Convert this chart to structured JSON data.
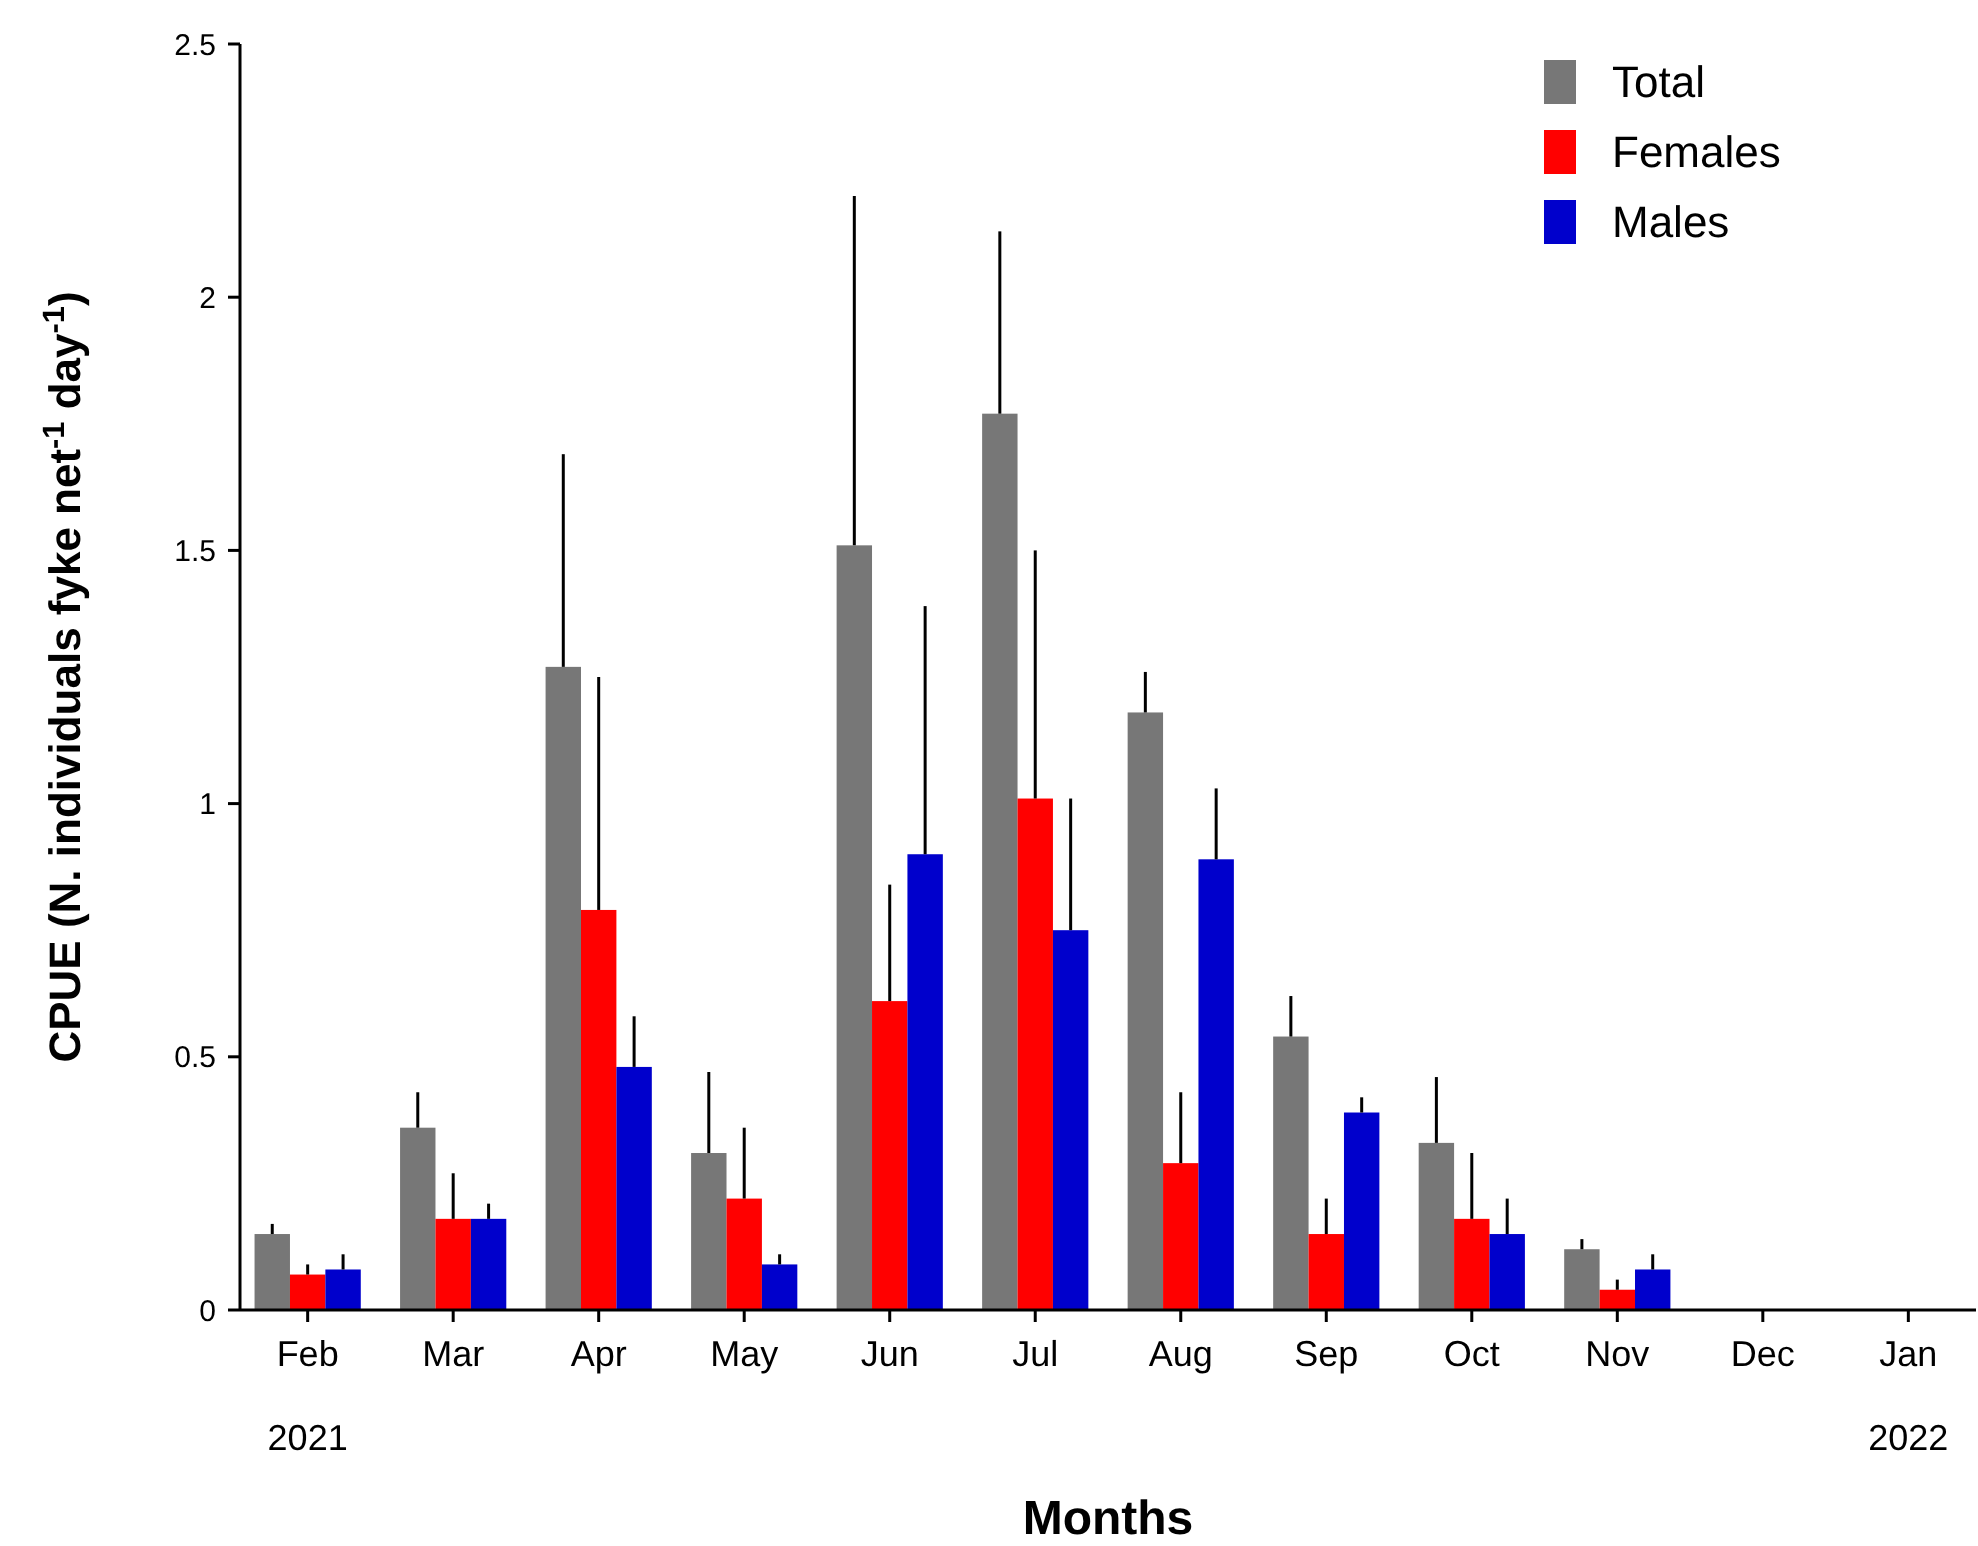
{
  "chart_data": {
    "type": "bar",
    "xlabel": "Months",
    "ylabel": "CPUE (N. individuals fyke net$^{-1}$ day$^{-1}$)",
    "categories": [
      "Feb",
      "Mar",
      "Apr",
      "May",
      "Jun",
      "Jul",
      "Aug",
      "Sep",
      "Oct",
      "Nov",
      "Dec",
      "Jan"
    ],
    "series": [
      {
        "name": "Total",
        "color": "#777777",
        "values": [
          0.15,
          0.36,
          1.27,
          0.31,
          1.51,
          1.77,
          1.18,
          0.54,
          0.33,
          0.12,
          null,
          null
        ],
        "errors": [
          [
            0.15,
            0.17
          ],
          [
            0.36,
            0.43
          ],
          [
            1.27,
            1.69
          ],
          [
            0.31,
            0.47
          ],
          [
            1.51,
            2.2
          ],
          [
            1.77,
            2.13
          ],
          [
            1.18,
            1.26
          ],
          [
            0.54,
            0.62
          ],
          [
            0.33,
            0.46
          ],
          [
            0.12,
            0.14
          ],
          null,
          null
        ]
      },
      {
        "name": "Females",
        "color": "#ff0000",
        "values": [
          0.07,
          0.18,
          0.79,
          0.22,
          0.61,
          1.01,
          0.29,
          0.15,
          0.18,
          0.04,
          null,
          null
        ],
        "errors": [
          [
            0.07,
            0.09
          ],
          [
            0.18,
            0.27
          ],
          [
            0.79,
            1.25
          ],
          [
            0.22,
            0.36
          ],
          [
            0.61,
            0.84
          ],
          [
            1.01,
            1.5
          ],
          [
            0.29,
            0.43
          ],
          [
            0.15,
            0.22
          ],
          [
            0.18,
            0.31
          ],
          [
            0.04,
            0.06
          ],
          null,
          null
        ]
      },
      {
        "name": "Males",
        "color": "#0000cc",
        "values": [
          0.08,
          0.18,
          0.48,
          0.09,
          0.9,
          0.75,
          0.89,
          0.39,
          0.15,
          0.08,
          null,
          null
        ],
        "errors": [
          [
            0.08,
            0.11
          ],
          [
            0.18,
            0.21
          ],
          [
            0.48,
            0.58
          ],
          [
            0.09,
            0.11
          ],
          [
            0.9,
            1.39
          ],
          [
            0.75,
            1.01
          ],
          [
            0.89,
            1.03
          ],
          [
            0.39,
            0.42
          ],
          [
            0.15,
            0.22
          ],
          [
            0.08,
            0.11
          ],
          null,
          null
        ]
      }
    ],
    "ylim": [
      0,
      2.5
    ],
    "yticks": [
      0,
      0.5,
      1,
      1.5,
      2,
      2.5
    ],
    "legend": "top right",
    "grid": false,
    "annotations": [
      "2021",
      "2022"
    ]
  }
}
